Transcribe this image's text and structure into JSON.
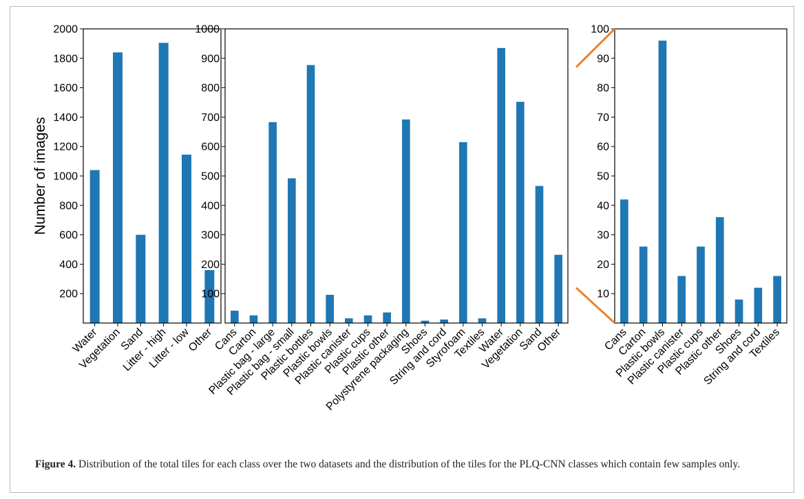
{
  "colors": {
    "bar": "#1f77b4",
    "highlight_label": "#f28a2e",
    "break_line": "#e8822e",
    "normal_label": "#000000"
  },
  "caption": {
    "label": "Figure 4.",
    "text": " Distribution of the total tiles for each class over the two datasets and the distribution of the tiles for the PLQ-CNN classes which contain few samples only."
  },
  "chart_data": [
    {
      "type": "bar",
      "ylabel": "Number of images",
      "ylim": [
        0,
        2000
      ],
      "yticks": [
        200,
        400,
        600,
        800,
        1000,
        1200,
        1400,
        1600,
        1800,
        2000
      ],
      "categories": [
        "Water",
        "Vegetation",
        "Sand",
        "Litter - high",
        "Litter - low",
        "Other"
      ],
      "values": [
        1040,
        1840,
        600,
        1905,
        1145,
        360
      ],
      "highlighted": []
    },
    {
      "type": "bar",
      "ylabel": "",
      "ylim": [
        0,
        1000
      ],
      "yticks": [
        100,
        200,
        300,
        400,
        500,
        600,
        700,
        800,
        900,
        1000
      ],
      "categories": [
        "Cans",
        "Carton",
        "Plastic bag - large",
        "Plastic bag - small",
        "Plastic bottles",
        "Plastic bowls",
        "Plastic canister",
        "Plastic cups",
        "Plastic other",
        "Polystyrene packaging",
        "Shoes",
        "String and cord",
        "Styrofoam",
        "Textiles",
        "Water",
        "Vegetation",
        "Sand",
        "Other"
      ],
      "values": [
        42,
        26,
        683,
        492,
        877,
        96,
        16,
        26,
        36,
        692,
        8,
        12,
        615,
        16,
        935,
        752,
        466,
        232
      ],
      "highlighted": [
        "Cans",
        "Carton",
        "Plastic bowls",
        "Plastic canister",
        "Plastic cups",
        "Plastic other",
        "Shoes",
        "String and cord",
        "Textiles"
      ]
    },
    {
      "type": "bar",
      "ylabel": "",
      "ylim": [
        0,
        100
      ],
      "yticks": [
        10,
        20,
        30,
        40,
        50,
        60,
        70,
        80,
        90,
        100
      ],
      "categories": [
        "Cans",
        "Carton",
        "Plastic bowls",
        "Plastic canister",
        "Plastic cups",
        "Plastic other",
        "Shoes",
        "String and cord",
        "Textiles"
      ],
      "values": [
        42,
        26,
        96,
        16,
        26,
        36,
        8,
        12,
        16
      ],
      "highlighted": [
        "Cans",
        "Carton",
        "Plastic bowls",
        "Plastic canister",
        "Plastic cups",
        "Plastic other",
        "Shoes",
        "String and cord",
        "Textiles"
      ]
    }
  ]
}
